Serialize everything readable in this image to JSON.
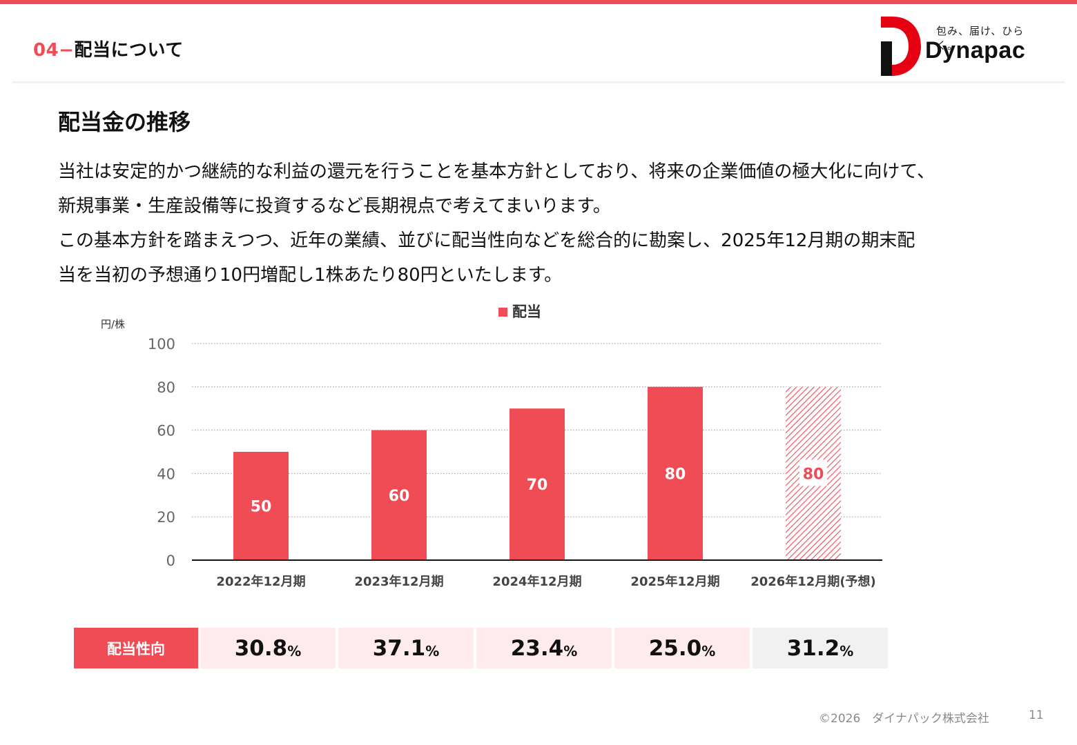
{
  "header": {
    "section_number": "04",
    "section_title": "配当について"
  },
  "logo": {
    "tagline": "包み、届け、ひらく。",
    "name": "Dynapac",
    "brand_red": "#e50012"
  },
  "page": {
    "heading": "配当金の推移",
    "paragraph_lines": [
      "当社は安定的かつ継続的な利益の還元を行うことを基本方針としており、将来の企業価値の極大化に向けて、",
      "新規事業・生産設備等に投資するなど長期視点で考えてまいります。",
      "この基本方針を踏まえつつ、近年の業績、並びに配当性向などを総合的に勘案し、2025年12月期の期末配",
      "当を当初の予想通り10円増配し1株あたり80円といたします。"
    ]
  },
  "chart_data": {
    "type": "bar",
    "legend": [
      "配当"
    ],
    "legend_position": "top-center",
    "ylabel": "円/株",
    "ylim": [
      0,
      100
    ],
    "yticks": [
      "0",
      "20",
      "40",
      "60",
      "80",
      "100"
    ],
    "grid": true,
    "categories": [
      "2022年12月期",
      "2023年12月期",
      "2024年12月期",
      "2025年12月期",
      "2026年12月期(予想)"
    ],
    "series": [
      {
        "name": "配当",
        "values": [
          50,
          60,
          70,
          80,
          80
        ],
        "labels": [
          "50",
          "60",
          "70",
          "80",
          "80"
        ],
        "forecast": [
          false,
          false,
          false,
          false,
          true
        ]
      }
    ],
    "bar_color": "#ef4c56"
  },
  "payout_ratio": {
    "label": "配当性向",
    "unit": "%",
    "values": [
      "30.8",
      "37.1",
      "23.4",
      "25.0",
      "31.2"
    ]
  },
  "footer": {
    "copyright": "©2026　ダイナパック株式会社",
    "page_number": "11"
  }
}
